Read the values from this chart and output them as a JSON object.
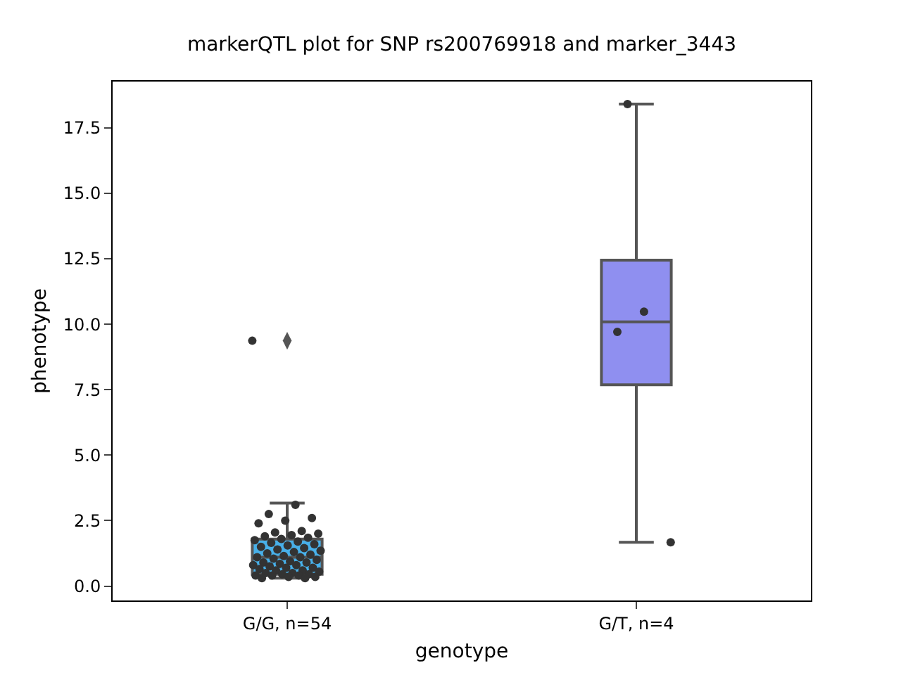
{
  "chart_data": {
    "type": "box",
    "title": "markerQTL plot for SNP rs200769918 and marker_3443",
    "xlabel": "genotype",
    "ylabel": "phenotype",
    "categories": [
      "G/G, n=54",
      "G/T, n=4"
    ],
    "colors": [
      "#48b0e9",
      "#8f8ff0"
    ],
    "boxes": [
      {
        "low": 0.3,
        "q1": 0.45,
        "median": 1.1,
        "q3": 1.79,
        "high": 3.17,
        "outliers": [
          9.37
        ]
      },
      {
        "low": 1.67,
        "q1": 7.69,
        "median": 10.09,
        "q3": 12.45,
        "high": 18.41
      }
    ],
    "series": [
      {
        "type": "scatter",
        "color": "#333333",
        "x": [
          "G/G, n=54",
          "G/G, n=54",
          "G/G, n=54",
          "G/G, n=54",
          "G/G, n=54",
          "G/G, n=54",
          "G/G, n=54",
          "G/G, n=54",
          "G/G, n=54",
          "G/G, n=54",
          "G/G, n=54",
          "G/G, n=54",
          "G/G, n=54",
          "G/G, n=54",
          "G/G, n=54",
          "G/G, n=54",
          "G/G, n=54",
          "G/G, n=54",
          "G/G, n=54",
          "G/G, n=54",
          "G/G, n=54",
          "G/G, n=54",
          "G/G, n=54",
          "G/G, n=54",
          "G/G, n=54",
          "G/G, n=54",
          "G/G, n=54",
          "G/G, n=54",
          "G/G, n=54",
          "G/G, n=54",
          "G/G, n=54",
          "G/G, n=54",
          "G/G, n=54",
          "G/G, n=54",
          "G/G, n=54",
          "G/G, n=54",
          "G/G, n=54",
          "G/G, n=54",
          "G/G, n=54",
          "G/G, n=54",
          "G/G, n=54",
          "G/G, n=54",
          "G/G, n=54",
          "G/G, n=54",
          "G/G, n=54",
          "G/G, n=54",
          "G/G, n=54",
          "G/G, n=54",
          "G/G, n=54",
          "G/G, n=54",
          "G/G, n=54",
          "G/G, n=54",
          "G/G, n=54",
          "G/G, n=54",
          "G/T, n=4",
          "G/T, n=4",
          "G/T, n=4",
          "G/T, n=4"
        ],
        "values": [
          9.37,
          3.1,
          2.75,
          2.6,
          2.5,
          2.4,
          2.1,
          2.05,
          2.0,
          1.95,
          1.9,
          1.85,
          1.8,
          1.75,
          1.7,
          1.65,
          1.6,
          1.55,
          1.5,
          1.45,
          1.4,
          1.35,
          1.3,
          1.25,
          1.2,
          1.15,
          1.1,
          1.1,
          1.05,
          1.0,
          0.95,
          0.9,
          0.9,
          0.85,
          0.8,
          0.8,
          0.75,
          0.7,
          0.7,
          0.65,
          0.6,
          0.6,
          0.55,
          0.5,
          0.5,
          0.45,
          0.45,
          0.4,
          0.4,
          0.4,
          0.35,
          0.35,
          0.3,
          0.3,
          18.41,
          1.67,
          10.48,
          9.71
        ]
      }
    ],
    "ylim": [
      -0.55,
      19.27
    ],
    "yticks": [
      {
        "value": 0,
        "label": "0.0"
      },
      {
        "value": 2.5,
        "label": "2.5"
      },
      {
        "value": 5,
        "label": "5.0"
      },
      {
        "value": 7.5,
        "label": "7.5"
      },
      {
        "value": 10,
        "label": "10.0"
      },
      {
        "value": 12.5,
        "label": "12.5"
      },
      {
        "value": 15,
        "label": "15.0"
      },
      {
        "value": 17.5,
        "label": "17.5"
      }
    ],
    "marker": "circle"
  }
}
